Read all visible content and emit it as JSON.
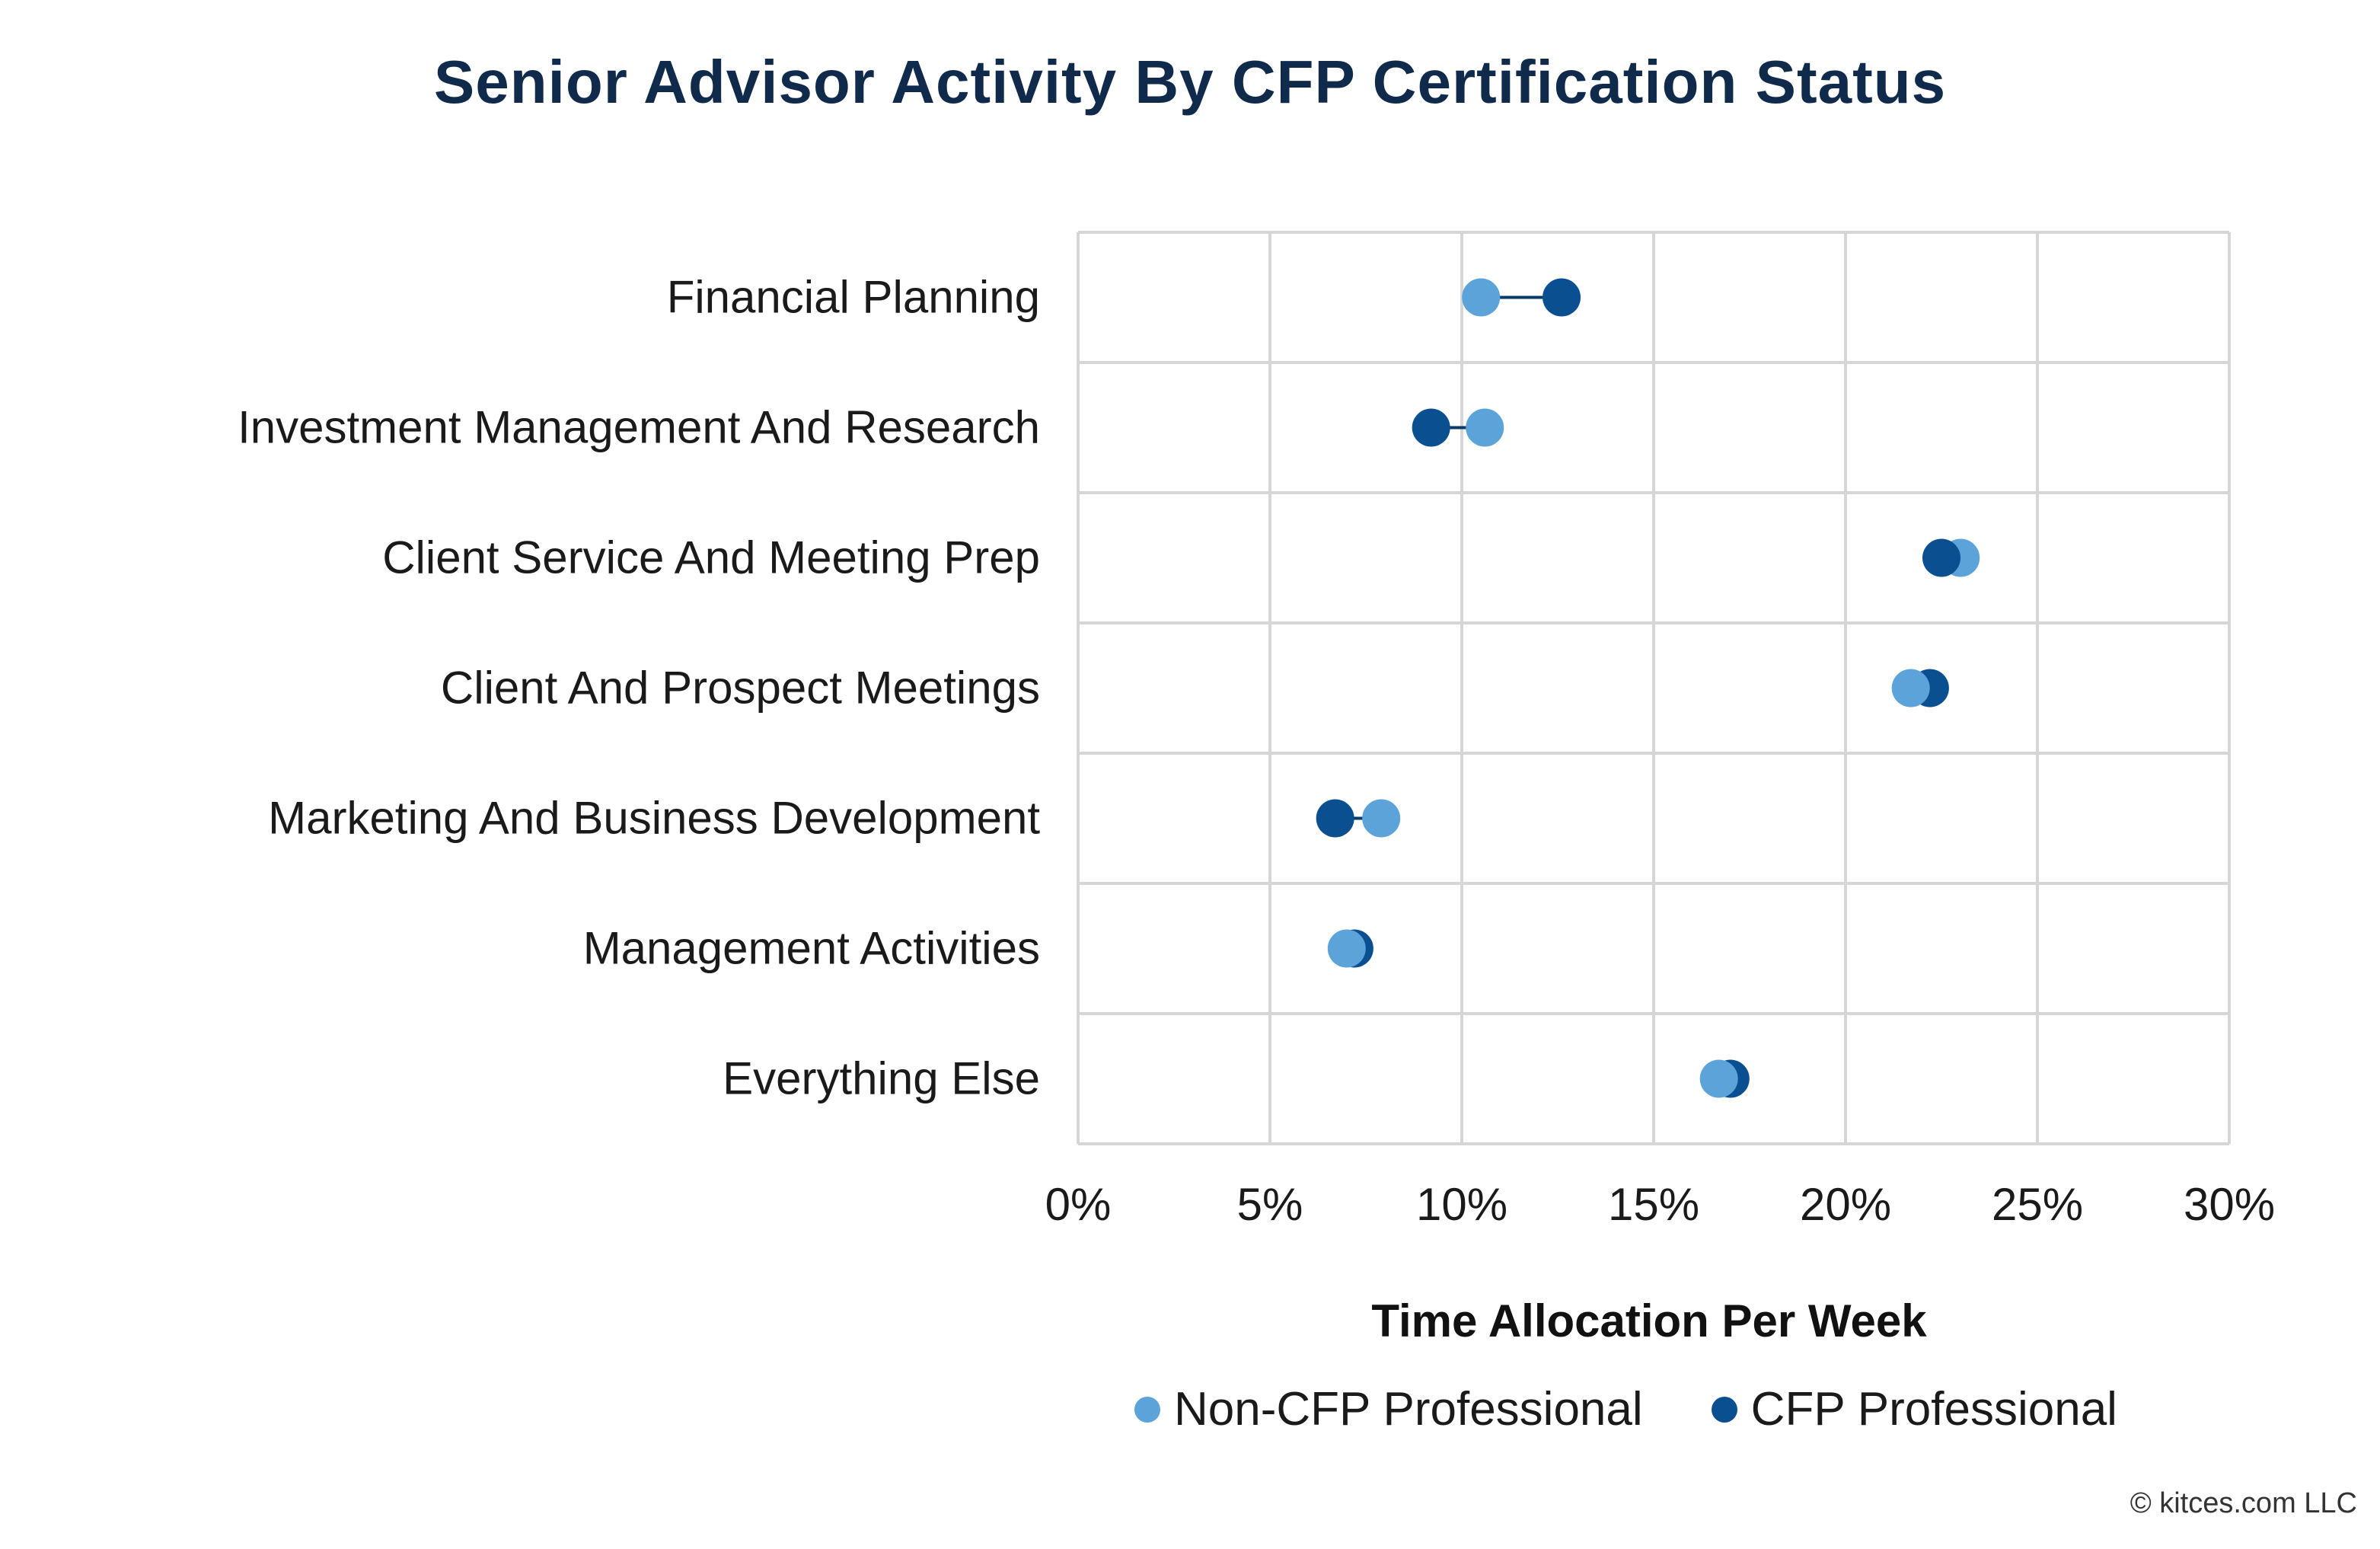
{
  "chart_data": {
    "type": "scatter",
    "subtype": "dumbbell",
    "title": "Senior Advisor Activity By CFP Certification Status",
    "xlabel": "Time Allocation Per Week",
    "ylabel": "",
    "xlim": [
      0,
      30
    ],
    "x_ticks": [
      "0%",
      "5%",
      "10%",
      "15%",
      "20%",
      "25%",
      "30%"
    ],
    "x_tick_values": [
      0,
      5,
      10,
      15,
      20,
      25,
      30
    ],
    "grid": true,
    "legend_position": "bottom",
    "categories": [
      "Financial Planning",
      "Investment Management And Research",
      "Client Service And Meeting Prep",
      "Client And Prospect Meetings",
      "Marketing And Business Development",
      "Management Activities",
      "Everything Else"
    ],
    "series": [
      {
        "name": "Non-CFP Professional",
        "color": "#5ba3d9",
        "values": [
          10.5,
          10.6,
          23.0,
          21.7,
          7.9,
          7.0,
          16.7
        ]
      },
      {
        "name": "CFP Professional",
        "color": "#0a4f8f",
        "values": [
          12.6,
          9.2,
          22.5,
          22.2,
          6.7,
          7.2,
          17.0
        ]
      }
    ]
  },
  "copyright": "© kitces.com LLC"
}
